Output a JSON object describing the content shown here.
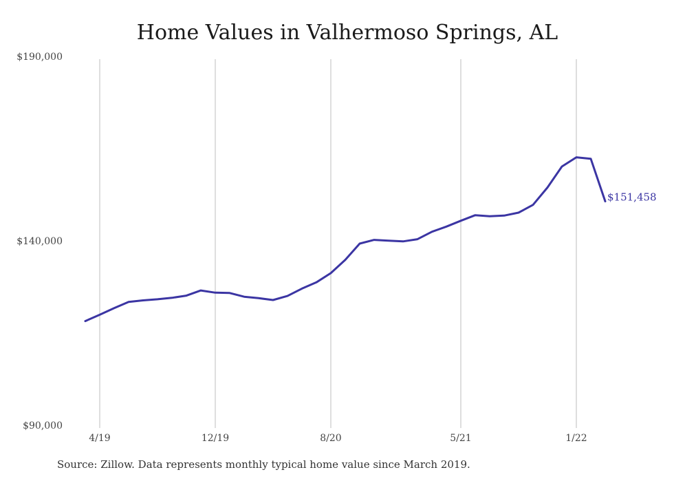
{
  "chart_data": {
    "type": "line",
    "title": "Home Values in Valhermoso Springs, AL",
    "xlabel": "",
    "ylabel": "",
    "y_ticks": [
      "$190,000",
      "$140,000",
      "$90,000"
    ],
    "y_tick_values": [
      190000,
      140000,
      90000
    ],
    "ylim": [
      90000,
      190000
    ],
    "x_ticks": [
      "4/19",
      "12/19",
      "8/20",
      "5/21",
      "1/22"
    ],
    "x_tick_months": [
      "2019-04",
      "2019-12",
      "2020-08",
      "2021-05",
      "2022-01"
    ],
    "xlim": [
      "2019-03",
      "2022-04"
    ],
    "grid": "vertical",
    "line_color": "#3b35a3",
    "end_label": "$151,458",
    "series": [
      {
        "x": [
          "2019-03",
          "2019-04",
          "2019-05",
          "2019-06",
          "2019-07",
          "2019-08",
          "2019-09",
          "2019-10",
          "2019-11",
          "2019-12",
          "2020-01",
          "2020-02",
          "2020-03",
          "2020-04",
          "2020-05",
          "2020-06",
          "2020-07",
          "2020-08",
          "2020-09",
          "2020-10",
          "2020-11",
          "2020-12",
          "2021-01",
          "2021-02",
          "2021-03",
          "2021-04",
          "2021-05",
          "2021-06",
          "2021-07",
          "2021-08",
          "2021-09",
          "2021-10",
          "2021-11",
          "2021-12",
          "2022-01",
          "2022-02",
          "2022-03"
        ],
        "values": [
          119000,
          120700,
          122500,
          124200,
          124600,
          124900,
          125300,
          125900,
          127300,
          126700,
          126600,
          125600,
          125200,
          124700,
          125800,
          127800,
          129500,
          132000,
          135600,
          140000,
          141000,
          140800,
          140600,
          141200,
          143200,
          144600,
          146200,
          147700,
          147400,
          147600,
          148400,
          150500,
          155200,
          160900,
          163400,
          163000,
          151458
        ]
      }
    ]
  },
  "source_note": "Source: Zillow. Data represents monthly typical home value since March 2019."
}
